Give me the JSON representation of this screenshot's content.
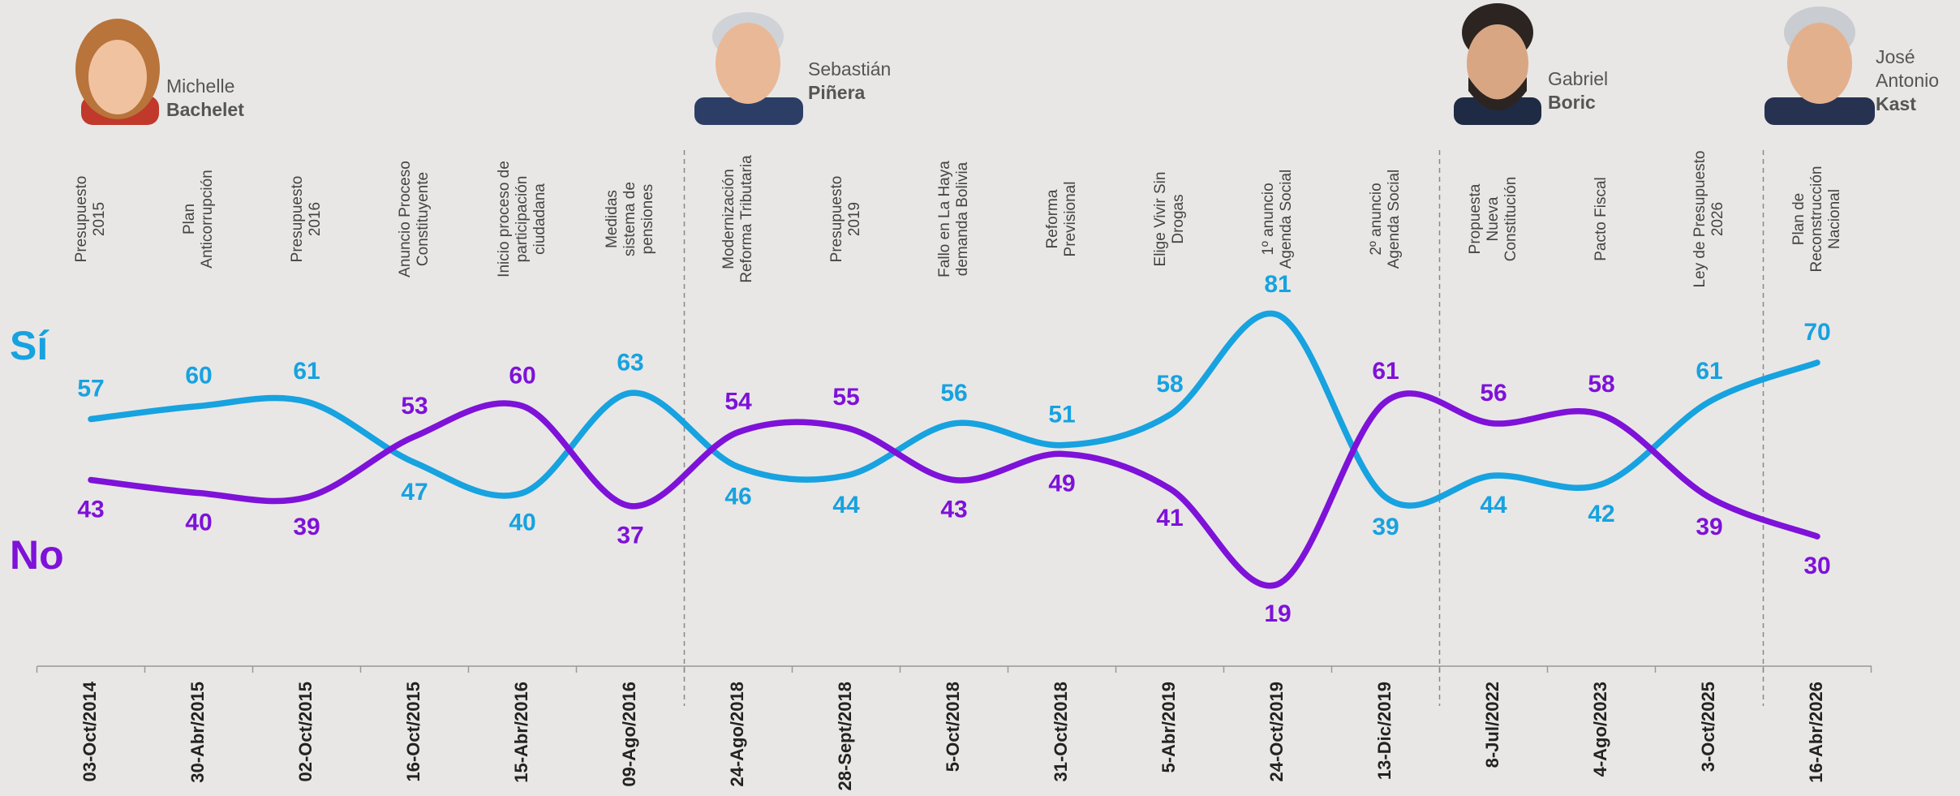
{
  "chart_data": {
    "type": "line",
    "categories": [
      "03-Oct/2014",
      "30-Abr/2015",
      "02-Oct/2015",
      "16-Oct/2015",
      "15-Abr/2016",
      "09-Ago/2016",
      "24-Ago/2018",
      "28-Sept/2018",
      "5-Oct/2018",
      "31-Oct/2018",
      "5-Abr/2019",
      "24-Oct/2019",
      "13-Dic/2019",
      "8-Jul/2022",
      "4-Ago/2023",
      "3-Oct/2025",
      "16-Abr/2026"
    ],
    "events": [
      [
        "Presupuesto",
        "2015"
      ],
      [
        "Plan",
        "Anticorrupción"
      ],
      [
        "Presupuesto",
        "2016"
      ],
      [
        "Anuncio Proceso",
        "Constituyente"
      ],
      [
        "Inicio proceso de",
        "participación",
        "ciudadana"
      ],
      [
        "Medidas",
        "sistema de",
        "pensiones"
      ],
      [
        "Modernización",
        "Reforma Tributaria"
      ],
      [
        "Presupuesto",
        "2019"
      ],
      [
        "Fallo en La Haya",
        "demanda Bolivia"
      ],
      [
        "Reforma",
        "Previsional"
      ],
      [
        "Elige Vivir Sin",
        "Drogas"
      ],
      [
        "1º anuncio",
        "Agenda Social"
      ],
      [
        "2º anuncio",
        "Agenda Social"
      ],
      [
        "Propuesta",
        "Nueva",
        "Constitución"
      ],
      [
        "Pacto Fiscal"
      ],
      [
        "Ley de Presupuesto",
        "2026"
      ],
      [
        "Plan de",
        "Reconstrucción",
        "Nacional"
      ]
    ],
    "series": [
      {
        "name": "Sí",
        "color": "#17a2e0",
        "values": [
          57,
          60,
          61,
          47,
          40,
          63,
          46,
          44,
          56,
          51,
          58,
          81,
          39,
          44,
          42,
          61,
          70
        ]
      },
      {
        "name": "No",
        "color": "#7e12d8",
        "values": [
          43,
          40,
          39,
          53,
          60,
          37,
          54,
          55,
          43,
          49,
          41,
          19,
          61,
          56,
          58,
          39,
          30
        ]
      }
    ]
  },
  "presidents": [
    {
      "given": [
        "Michelle"
      ],
      "surname": "Bachelet"
    },
    {
      "given": [
        "Sebastián"
      ],
      "surname": "Piñera"
    },
    {
      "given": [
        "Gabriel"
      ],
      "surname": "Boric"
    },
    {
      "given": [
        "José",
        "Antonio"
      ],
      "surname": "Kast"
    }
  ]
}
